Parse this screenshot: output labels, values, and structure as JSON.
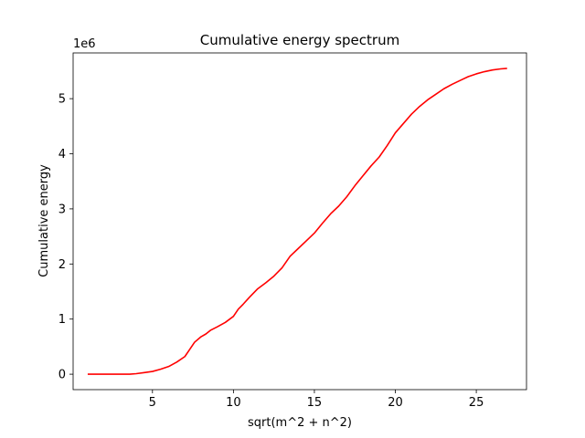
{
  "chart_data": {
    "type": "line",
    "title": "Cumulative energy spectrum",
    "xlabel": "sqrt(m^2 + n^2)",
    "ylabel": "Cumulative energy",
    "offset_label": "1e6",
    "xlim": [
      0.1,
      28.1
    ],
    "ylim": [
      -0.28,
      5.83
    ],
    "x_ticks": [
      5,
      10,
      15,
      20,
      25
    ],
    "x_tick_labels": [
      "5",
      "10",
      "15",
      "20",
      "25"
    ],
    "y_ticks": [
      0,
      1,
      2,
      3,
      4,
      5
    ],
    "y_tick_labels": [
      "0",
      "1",
      "2",
      "3",
      "4",
      "5"
    ],
    "grid": false,
    "legend": "none",
    "series": [
      {
        "color": "#ff0000",
        "x": [
          1.0,
          2.0,
          3.0,
          3.6,
          4.0,
          4.5,
          5.0,
          5.5,
          6.0,
          6.5,
          7.0,
          7.3,
          7.6,
          8.0,
          8.3,
          8.6,
          9.0,
          9.5,
          10.0,
          10.3,
          10.6,
          11.0,
          11.5,
          12.0,
          12.5,
          13.0,
          13.5,
          14.0,
          14.5,
          15.0,
          15.5,
          16.0,
          16.5,
          17.0,
          17.5,
          18.0,
          18.5,
          19.0,
          19.5,
          20.0,
          20.5,
          21.0,
          21.5,
          22.0,
          22.5,
          23.0,
          23.5,
          24.0,
          24.5,
          25.0,
          25.5,
          26.0,
          26.5,
          26.9
        ],
        "y": [
          0.0,
          0.0,
          0.0,
          0.0,
          0.01,
          0.03,
          0.05,
          0.09,
          0.14,
          0.22,
          0.32,
          0.45,
          0.58,
          0.68,
          0.73,
          0.8,
          0.86,
          0.94,
          1.05,
          1.18,
          1.27,
          1.4,
          1.55,
          1.66,
          1.78,
          1.93,
          2.14,
          2.28,
          2.42,
          2.56,
          2.74,
          2.91,
          3.05,
          3.22,
          3.42,
          3.6,
          3.78,
          3.94,
          4.15,
          4.38,
          4.55,
          4.72,
          4.86,
          4.98,
          5.08,
          5.18,
          5.26,
          5.33,
          5.4,
          5.45,
          5.49,
          5.52,
          5.54,
          5.55
        ]
      }
    ]
  }
}
